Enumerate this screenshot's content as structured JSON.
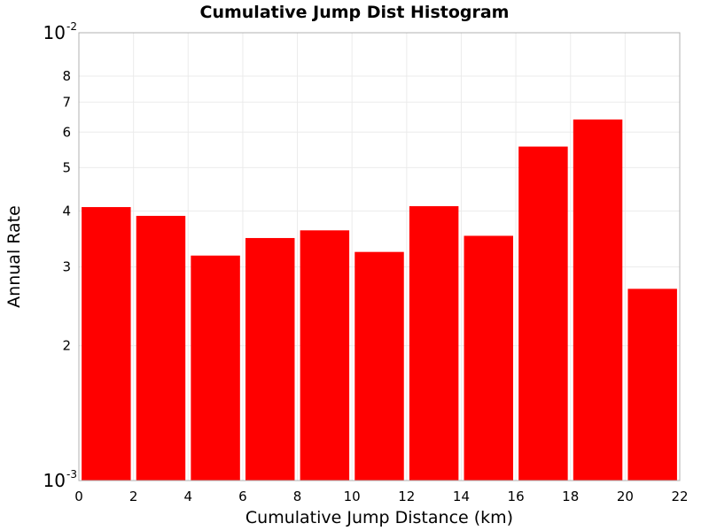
{
  "chart_data": {
    "type": "bar",
    "title": "Cumulative Jump Dist Histogram",
    "xlabel": "Cumulative Jump Distance (km)",
    "ylabel": "Annual Rate",
    "y_scale": "log",
    "xlim": [
      0,
      22
    ],
    "ylim": [
      0.001,
      0.01
    ],
    "x_ticks": [
      "0",
      "2",
      "4",
      "6",
      "8",
      "10",
      "12",
      "14",
      "16",
      "18",
      "20",
      "22"
    ],
    "y_major_ticks": [
      {
        "value": 0.001,
        "base": "10",
        "exp": "-3"
      },
      {
        "value": 0.01,
        "base": "10",
        "exp": "-2"
      }
    ],
    "y_minor_ticks": [
      {
        "value": 0.002,
        "label": "2"
      },
      {
        "value": 0.003,
        "label": "3"
      },
      {
        "value": 0.004,
        "label": "4"
      },
      {
        "value": 0.005,
        "label": "5"
      },
      {
        "value": 0.006,
        "label": "6"
      },
      {
        "value": 0.007,
        "label": "7"
      },
      {
        "value": 0.008,
        "label": "8"
      }
    ],
    "bar_width": 1.8,
    "bar_color": "#ff0000",
    "bars": [
      {
        "x": 1,
        "value": 0.00408
      },
      {
        "x": 3,
        "value": 0.0039
      },
      {
        "x": 5,
        "value": 0.00318
      },
      {
        "x": 7,
        "value": 0.00348
      },
      {
        "x": 9,
        "value": 0.00362
      },
      {
        "x": 11,
        "value": 0.00324
      },
      {
        "x": 13,
        "value": 0.0041
      },
      {
        "x": 15,
        "value": 0.00352
      },
      {
        "x": 17,
        "value": 0.00557
      },
      {
        "x": 19,
        "value": 0.0064
      },
      {
        "x": 21,
        "value": 0.00268
      }
    ]
  }
}
